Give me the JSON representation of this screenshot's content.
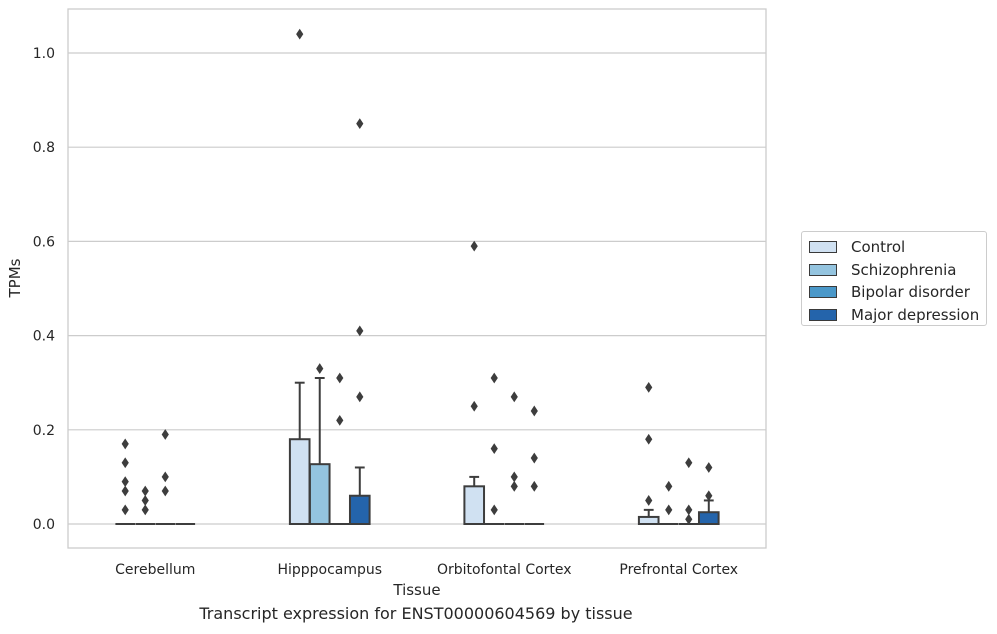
{
  "caption": "Transcript expression for ENST00000604569 by tissue",
  "chart_data": {
    "type": "box",
    "xlabel": "Tissue",
    "ylabel": "TPMs",
    "ylim": [
      -0.05,
      1.09
    ],
    "yticks": [
      0.0,
      0.2,
      0.4,
      0.6,
      0.8,
      1.0
    ],
    "ytick_labels": [
      "0.0",
      "0.2",
      "0.4",
      "0.6",
      "0.8",
      "1.0"
    ],
    "categories": [
      "Cerebellum",
      "Hipppocampus",
      "Orbitofontal Cortex",
      "Prefrontal Cortex"
    ],
    "grid": "horizontal",
    "legend_position": "outside-right",
    "series": [
      {
        "name": "Control",
        "color": "#d0e1f2",
        "boxes": [
          {
            "q1": 0,
            "median": 0,
            "q3": 0,
            "whisker_low": 0,
            "whisker_high": 0,
            "outliers": [
              0.17,
              0.09,
              0.13,
              0.07,
              0.03
            ]
          },
          {
            "q1": 0,
            "median": 0,
            "q3": 0.18,
            "whisker_low": 0,
            "whisker_high": 0.3,
            "outliers": [
              1.04
            ]
          },
          {
            "q1": 0,
            "median": 0,
            "q3": 0.08,
            "whisker_low": 0,
            "whisker_high": 0.1,
            "outliers": [
              0.59,
              0.25
            ]
          },
          {
            "q1": 0,
            "median": 0,
            "q3": 0.015,
            "whisker_low": 0,
            "whisker_high": 0.03,
            "outliers": [
              0.29,
              0.18,
              0.05
            ]
          }
        ]
      },
      {
        "name": "Schizophrenia",
        "color": "#94c4df",
        "boxes": [
          {
            "q1": 0,
            "median": 0,
            "q3": 0,
            "whisker_low": 0,
            "whisker_high": 0,
            "outliers": [
              0.07,
              0.05,
              0.03
            ]
          },
          {
            "q1": 0,
            "median": 0,
            "q3": 0.127,
            "whisker_low": 0,
            "whisker_high": 0.31,
            "outliers": [
              0.33
            ]
          },
          {
            "q1": 0,
            "median": 0,
            "q3": 0,
            "whisker_low": 0,
            "whisker_high": 0,
            "outliers": [
              0.31,
              0.16,
              0.03
            ]
          },
          {
            "q1": 0,
            "median": 0,
            "q3": 0,
            "whisker_low": 0,
            "whisker_high": 0,
            "outliers": [
              0.08,
              0.03
            ]
          }
        ]
      },
      {
        "name": "Bipolar disorder",
        "color": "#4a98c9",
        "boxes": [
          {
            "q1": 0,
            "median": 0,
            "q3": 0,
            "whisker_low": 0,
            "whisker_high": 0,
            "outliers": [
              0.19,
              0.1,
              0.07
            ]
          },
          {
            "q1": 0,
            "median": 0,
            "q3": 0,
            "whisker_low": 0,
            "whisker_high": 0,
            "outliers": [
              0.31,
              0.22
            ]
          },
          {
            "q1": 0,
            "median": 0,
            "q3": 0,
            "whisker_low": 0,
            "whisker_high": 0,
            "outliers": [
              0.27,
              0.1,
              0.08
            ]
          },
          {
            "q1": 0,
            "median": 0,
            "q3": 0,
            "whisker_low": 0,
            "whisker_high": 0,
            "outliers": [
              0.13,
              0.03,
              0.01
            ]
          }
        ]
      },
      {
        "name": "Major depression",
        "color": "#2464ab",
        "boxes": [
          {
            "q1": 0,
            "median": 0,
            "q3": 0,
            "whisker_low": 0,
            "whisker_high": 0,
            "outliers": []
          },
          {
            "q1": 0,
            "median": 0,
            "q3": 0.06,
            "whisker_low": 0,
            "whisker_high": 0.12,
            "outliers": [
              0.85,
              0.41,
              0.27
            ]
          },
          {
            "q1": 0,
            "median": 0,
            "q3": 0,
            "whisker_low": 0,
            "whisker_high": 0,
            "outliers": [
              0.24,
              0.14,
              0.08
            ]
          },
          {
            "q1": 0,
            "median": 0,
            "q3": 0.025,
            "whisker_low": 0,
            "whisker_high": 0.05,
            "outliers": [
              0.12,
              0.06
            ]
          }
        ]
      }
    ]
  }
}
